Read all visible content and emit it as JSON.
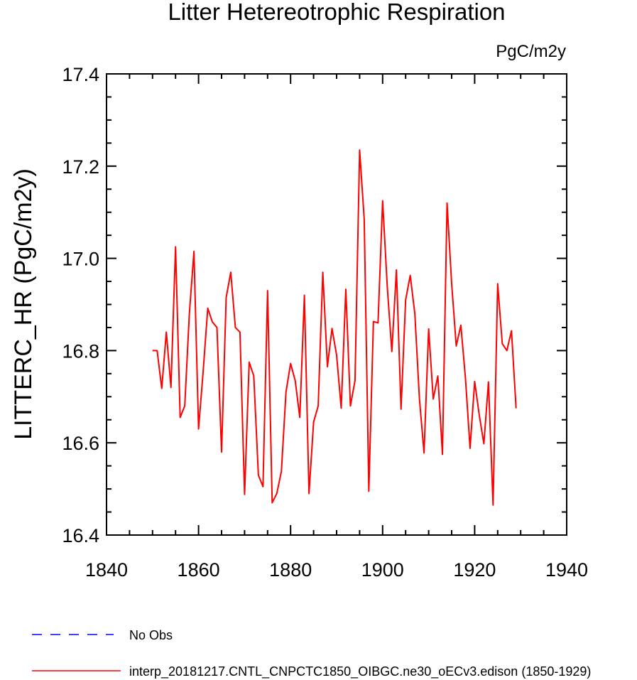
{
  "chart_data": {
    "type": "line",
    "title": "Litter Hetereotrophic Respiration",
    "units_label": "PgC/m2y",
    "ylabel": "LITTERC_HR  (PgC/m2y)",
    "xlabel": "",
    "xlim": [
      1840,
      1940
    ],
    "ylim": [
      16.4,
      17.4
    ],
    "x_ticks": [
      1840,
      1860,
      1880,
      1900,
      1920,
      1940
    ],
    "x_tick_labels": [
      "1840",
      "1860",
      "1880",
      "1900",
      "1920",
      "1940"
    ],
    "y_ticks": [
      16.4,
      16.6,
      16.8,
      17.0,
      17.2,
      17.4
    ],
    "y_tick_labels": [
      "16.4",
      "16.6",
      "16.8",
      "17.0",
      "17.2",
      "17.4"
    ],
    "series": [
      {
        "name": "interp_20181217.CNTL_CNPCTC1850_OIBGC.ne30_oECv3.edison (1850-1929)",
        "color": "#ff0000",
        "x": [
          1850,
          1851,
          1852,
          1853,
          1854,
          1855,
          1856,
          1857,
          1858,
          1859,
          1860,
          1861,
          1862,
          1863,
          1864,
          1865,
          1866,
          1867,
          1868,
          1869,
          1870,
          1871,
          1872,
          1873,
          1874,
          1875,
          1876,
          1877,
          1878,
          1879,
          1880,
          1881,
          1882,
          1883,
          1884,
          1885,
          1886,
          1887,
          1888,
          1889,
          1890,
          1891,
          1892,
          1893,
          1894,
          1895,
          1896,
          1897,
          1898,
          1899,
          1900,
          1901,
          1902,
          1903,
          1904,
          1905,
          1906,
          1907,
          1908,
          1909,
          1910,
          1911,
          1912,
          1913,
          1914,
          1915,
          1916,
          1917,
          1918,
          1919,
          1920,
          1921,
          1922,
          1923,
          1924,
          1925,
          1926,
          1927,
          1928,
          1929
        ],
        "values": [
          16.8,
          16.8,
          16.718,
          16.84,
          16.72,
          17.025,
          16.655,
          16.68,
          16.88,
          17.015,
          16.63,
          16.755,
          16.892,
          16.862,
          16.85,
          16.58,
          16.915,
          16.97,
          16.85,
          16.84,
          16.488,
          16.775,
          16.745,
          16.53,
          16.505,
          16.93,
          16.47,
          16.49,
          16.538,
          16.71,
          16.772,
          16.735,
          16.655,
          16.92,
          16.49,
          16.645,
          16.68,
          16.97,
          16.765,
          16.848,
          16.79,
          16.675,
          16.933,
          16.68,
          16.735,
          17.235,
          17.085,
          16.495,
          16.863,
          16.86,
          17.125,
          16.94,
          16.798,
          16.975,
          16.673,
          16.91,
          16.963,
          16.88,
          16.695,
          16.578,
          16.847,
          16.695,
          16.745,
          16.575,
          17.12,
          16.945,
          16.81,
          16.855,
          16.74,
          16.588,
          16.733,
          16.66,
          16.598,
          16.732,
          16.465,
          16.945,
          16.815,
          16.8,
          16.843,
          16.675
        ]
      },
      {
        "name": "No Obs",
        "color": "#0000ff",
        "x": [],
        "values": []
      }
    ],
    "legend_position": "bottom-left"
  },
  "legend": {
    "items": [
      {
        "label": "No Obs",
        "style": "dashed",
        "color": "#0000ff"
      },
      {
        "label": "interp_20181217.CNTL_CNPCTC1850_OIBGC.ne30_oECv3.edison (1850-1929)",
        "style": "solid",
        "color": "#ff0000"
      }
    ]
  }
}
